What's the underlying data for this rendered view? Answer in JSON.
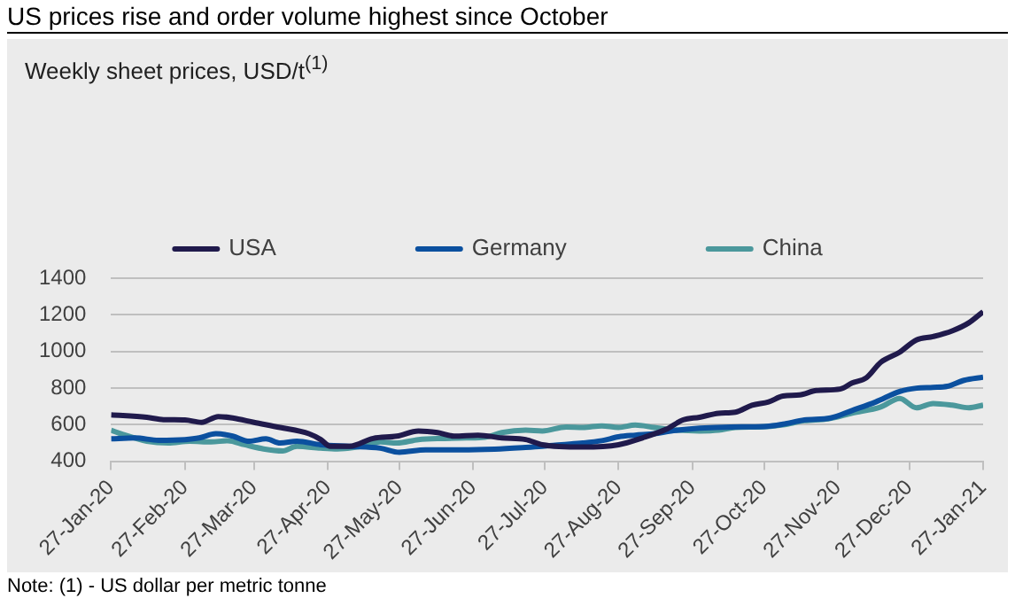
{
  "chart_data": {
    "type": "line",
    "title": "US prices rise and order volume highest since October",
    "subtitle": "Weekly sheet prices, USD/t$^{(1)}$",
    "annotations": [
      "Note: (1) - US dollar per metric tonne"
    ],
    "series": [
      {
        "name": "USA",
        "color": "#201a4c",
        "x": [
          "2020-01-27",
          "2020-02-11",
          "2020-02-18",
          "2020-02-27",
          "2020-03-05",
          "2020-03-12",
          "2020-03-18",
          "2020-03-27",
          "2020-04-07",
          "2020-04-19",
          "2020-04-24",
          "2020-04-28",
          "2020-05-06",
          "2020-05-16",
          "2020-05-26",
          "2020-06-04",
          "2020-06-12",
          "2020-06-19",
          "2020-06-29",
          "2020-07-09",
          "2020-07-19",
          "2020-07-26",
          "2020-08-12",
          "2020-08-27",
          "2020-09-06",
          "2020-09-16",
          "2020-09-23",
          "2020-09-30",
          "2020-10-08",
          "2020-10-15",
          "2020-10-22",
          "2020-10-29",
          "2020-11-04",
          "2020-11-11",
          "2020-11-18",
          "2020-11-28",
          "2020-12-03",
          "2020-12-09",
          "2020-12-15",
          "2020-12-23",
          "2020-12-30",
          "2021-01-06",
          "2021-01-14",
          "2021-01-21",
          "2021-01-27"
        ],
        "values": [
          653,
          640,
          627,
          625,
          612,
          644,
          636,
          612,
          584,
          550,
          518,
          481,
          481,
          524,
          537,
          565,
          556,
          537,
          542,
          527,
          518,
          490,
          477,
          490,
          527,
          574,
          625,
          640,
          662,
          668,
          706,
          724,
          756,
          762,
          786,
          794,
          827,
          856,
          940,
          996,
          1062,
          1081,
          1112,
          1156,
          1217
        ]
      },
      {
        "name": "Germany",
        "color": "#0b509f",
        "x": [
          "2020-01-27",
          "2020-02-06",
          "2020-02-16",
          "2020-02-27",
          "2020-03-04",
          "2020-03-11",
          "2020-03-18",
          "2020-03-25",
          "2020-04-01",
          "2020-04-07",
          "2020-04-14",
          "2020-04-24",
          "2020-05-06",
          "2020-05-19",
          "2020-05-27",
          "2020-06-07",
          "2020-06-22",
          "2020-07-06",
          "2020-07-19",
          "2020-07-26",
          "2020-08-03",
          "2020-08-12",
          "2020-08-20",
          "2020-08-27",
          "2020-09-03",
          "2020-09-11",
          "2020-09-18",
          "2020-09-30",
          "2020-10-13",
          "2020-10-27",
          "2020-11-04",
          "2020-11-13",
          "2020-11-24",
          "2020-12-03",
          "2020-12-13",
          "2020-12-23",
          "2020-12-30",
          "2021-01-06",
          "2021-01-12",
          "2021-01-19",
          "2021-01-27"
        ],
        "values": [
          522,
          527,
          514,
          518,
          527,
          550,
          537,
          509,
          522,
          499,
          509,
          490,
          481,
          471,
          449,
          462,
          462,
          466,
          475,
          481,
          490,
          499,
          512,
          533,
          542,
          550,
          565,
          580,
          587,
          589,
          602,
          625,
          636,
          677,
          724,
          781,
          799,
          803,
          809,
          842,
          859
        ]
      },
      {
        "name": "China",
        "color": "#4b989c",
        "x": [
          "2020-01-27",
          "2020-02-01",
          "2020-02-11",
          "2020-02-20",
          "2020-02-29",
          "2020-03-09",
          "2020-03-16",
          "2020-03-23",
          "2020-03-31",
          "2020-04-08",
          "2020-04-14",
          "2020-04-24",
          "2020-05-01",
          "2020-05-11",
          "2020-05-19",
          "2020-05-26",
          "2020-06-04",
          "2020-06-15",
          "2020-06-24",
          "2020-07-02",
          "2020-07-09",
          "2020-07-19",
          "2020-07-26",
          "2020-08-05",
          "2020-08-12",
          "2020-08-20",
          "2020-08-27",
          "2020-09-03",
          "2020-09-11",
          "2020-09-21",
          "2020-09-30",
          "2020-10-08",
          "2020-10-15",
          "2020-10-25",
          "2020-11-04",
          "2020-11-13",
          "2020-11-23",
          "2020-12-03",
          "2020-12-15",
          "2020-12-23",
          "2020-12-30",
          "2021-01-06",
          "2021-01-14",
          "2021-01-21",
          "2021-01-27"
        ],
        "values": [
          569,
          546,
          509,
          499,
          509,
          505,
          512,
          490,
          467,
          456,
          481,
          471,
          467,
          481,
          505,
          499,
          518,
          524,
          527,
          531,
          556,
          569,
          565,
          587,
          584,
          593,
          584,
          597,
          584,
          569,
          565,
          569,
          584,
          587,
          599,
          621,
          631,
          662,
          696,
          743,
          692,
          715,
          706,
          692,
          706
        ]
      }
    ],
    "xlim": [
      "2020-01-27",
      "2021-01-27"
    ],
    "xticks": [
      {
        "value": "2020-01-27",
        "label": "27-Jan-20"
      },
      {
        "value": "2020-02-27",
        "label": "27-Feb-20"
      },
      {
        "value": "2020-03-27",
        "label": "27-Mar-20"
      },
      {
        "value": "2020-04-27",
        "label": "27-Apr-20"
      },
      {
        "value": "2020-05-27",
        "label": "27-May-20"
      },
      {
        "value": "2020-06-27",
        "label": "27-Jun-20"
      },
      {
        "value": "2020-07-27",
        "label": "27-Jul-20"
      },
      {
        "value": "2020-08-27",
        "label": "27-Aug-20"
      },
      {
        "value": "2020-09-27",
        "label": "27-Sep-20"
      },
      {
        "value": "2020-10-27",
        "label": "27-Oct-20"
      },
      {
        "value": "2020-11-27",
        "label": "27-Nov-20"
      },
      {
        "value": "2020-12-27",
        "label": "27-Dec-20"
      },
      {
        "value": "2021-01-27",
        "label": "27-Jan-21"
      }
    ],
    "ylim": [
      400,
      1400
    ],
    "yticks": [
      400,
      600,
      800,
      1000,
      1200,
      1400
    ],
    "grid": "y",
    "legend": "top",
    "marker": "none",
    "line_style": "solid"
  }
}
